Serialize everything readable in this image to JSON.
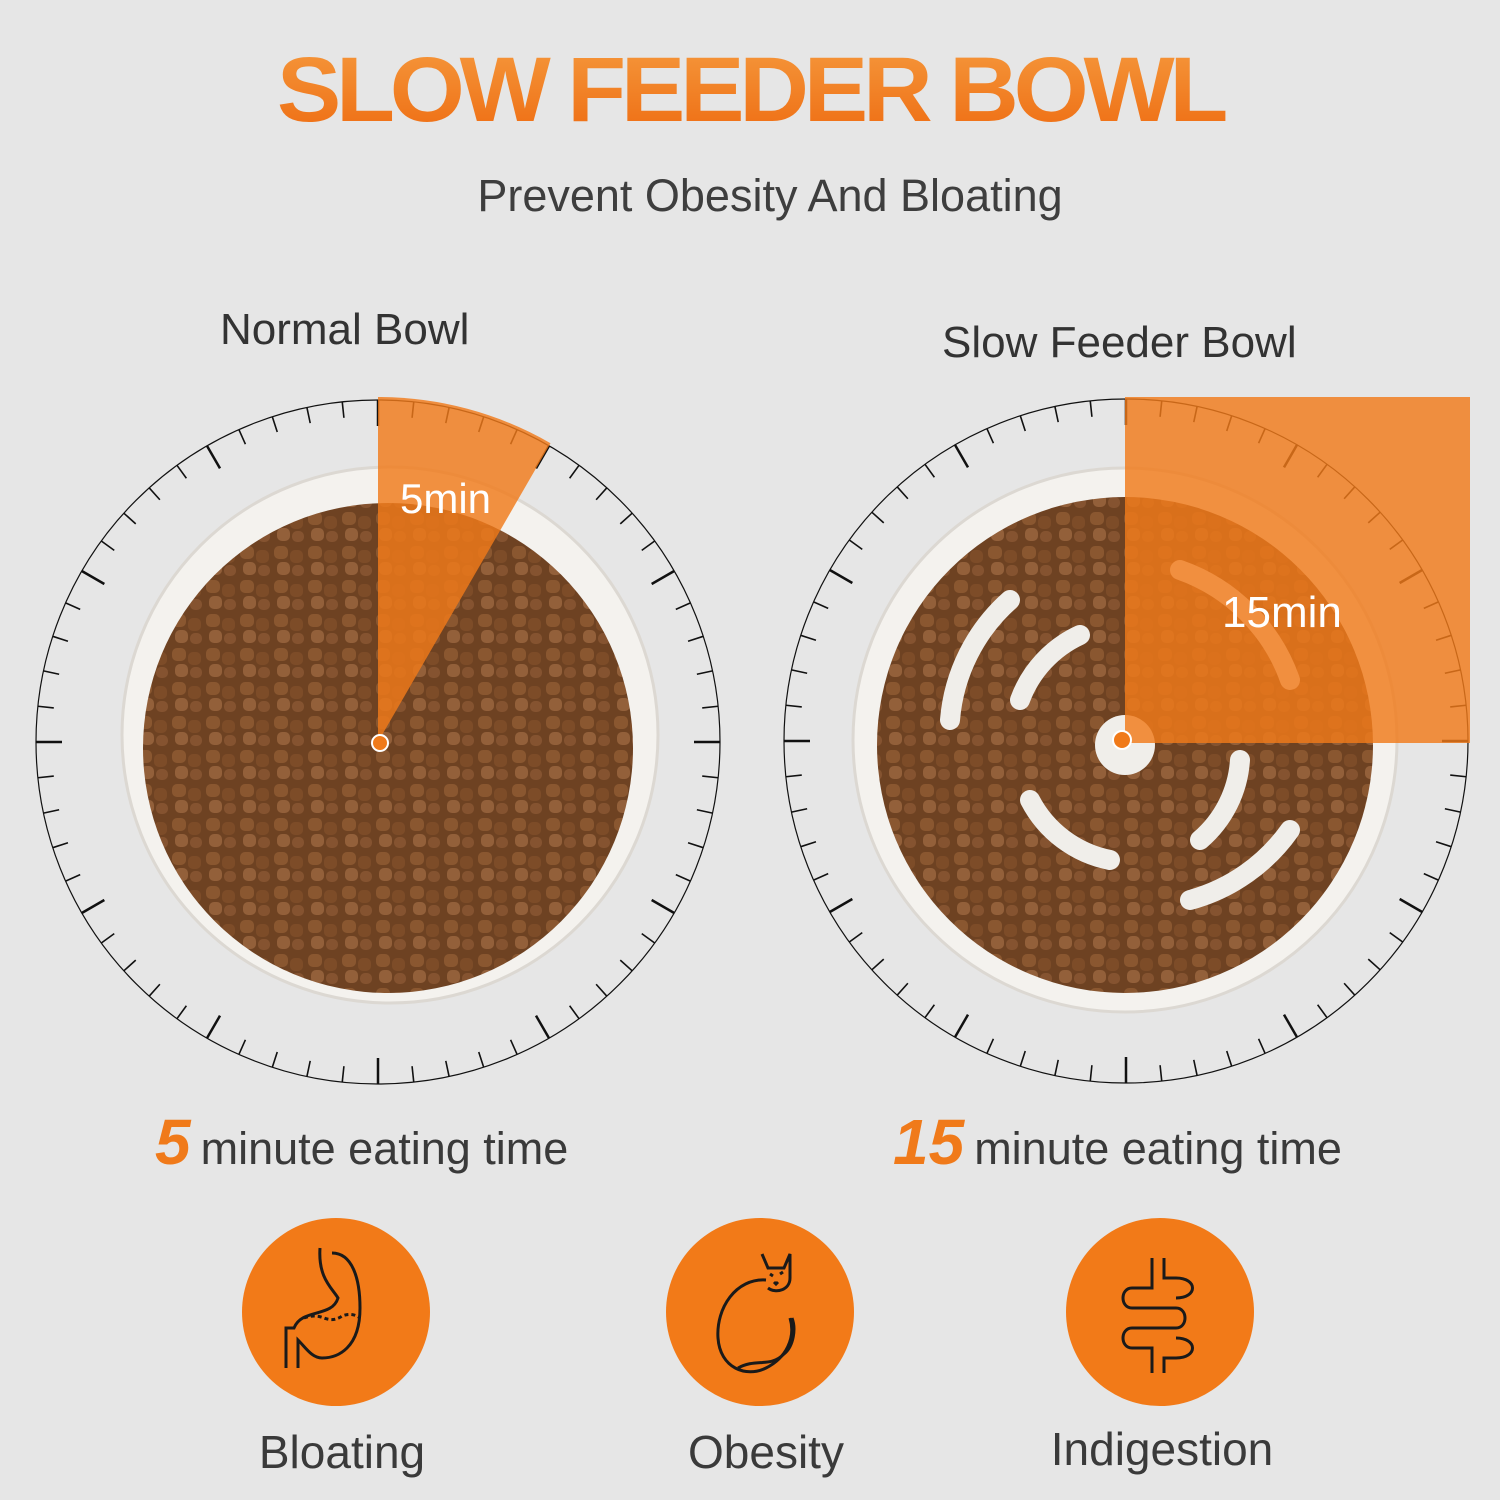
{
  "header": {
    "title": "SLOW FEEDER BOWL",
    "subtitle": "Prevent Obesity And Bloating"
  },
  "colors": {
    "accent": "#f07a1a",
    "background": "#e6e6e6",
    "text": "#3a3a3a",
    "food": "#7a4a26"
  },
  "bowls": [
    {
      "label": "Normal Bowl",
      "minutes": 5,
      "dial_label": "5min",
      "eating_number": "5",
      "eating_text": "minute eating time"
    },
    {
      "label": "Slow Feeder Bowl",
      "minutes": 15,
      "dial_label": "15min",
      "eating_number": "15",
      "eating_text": "minute eating time"
    }
  ],
  "conditions": [
    {
      "label": "Bloating",
      "icon": "stomach-icon"
    },
    {
      "label": "Obesity",
      "icon": "cat-icon"
    },
    {
      "label": "Indigestion",
      "icon": "intestine-icon"
    }
  ]
}
